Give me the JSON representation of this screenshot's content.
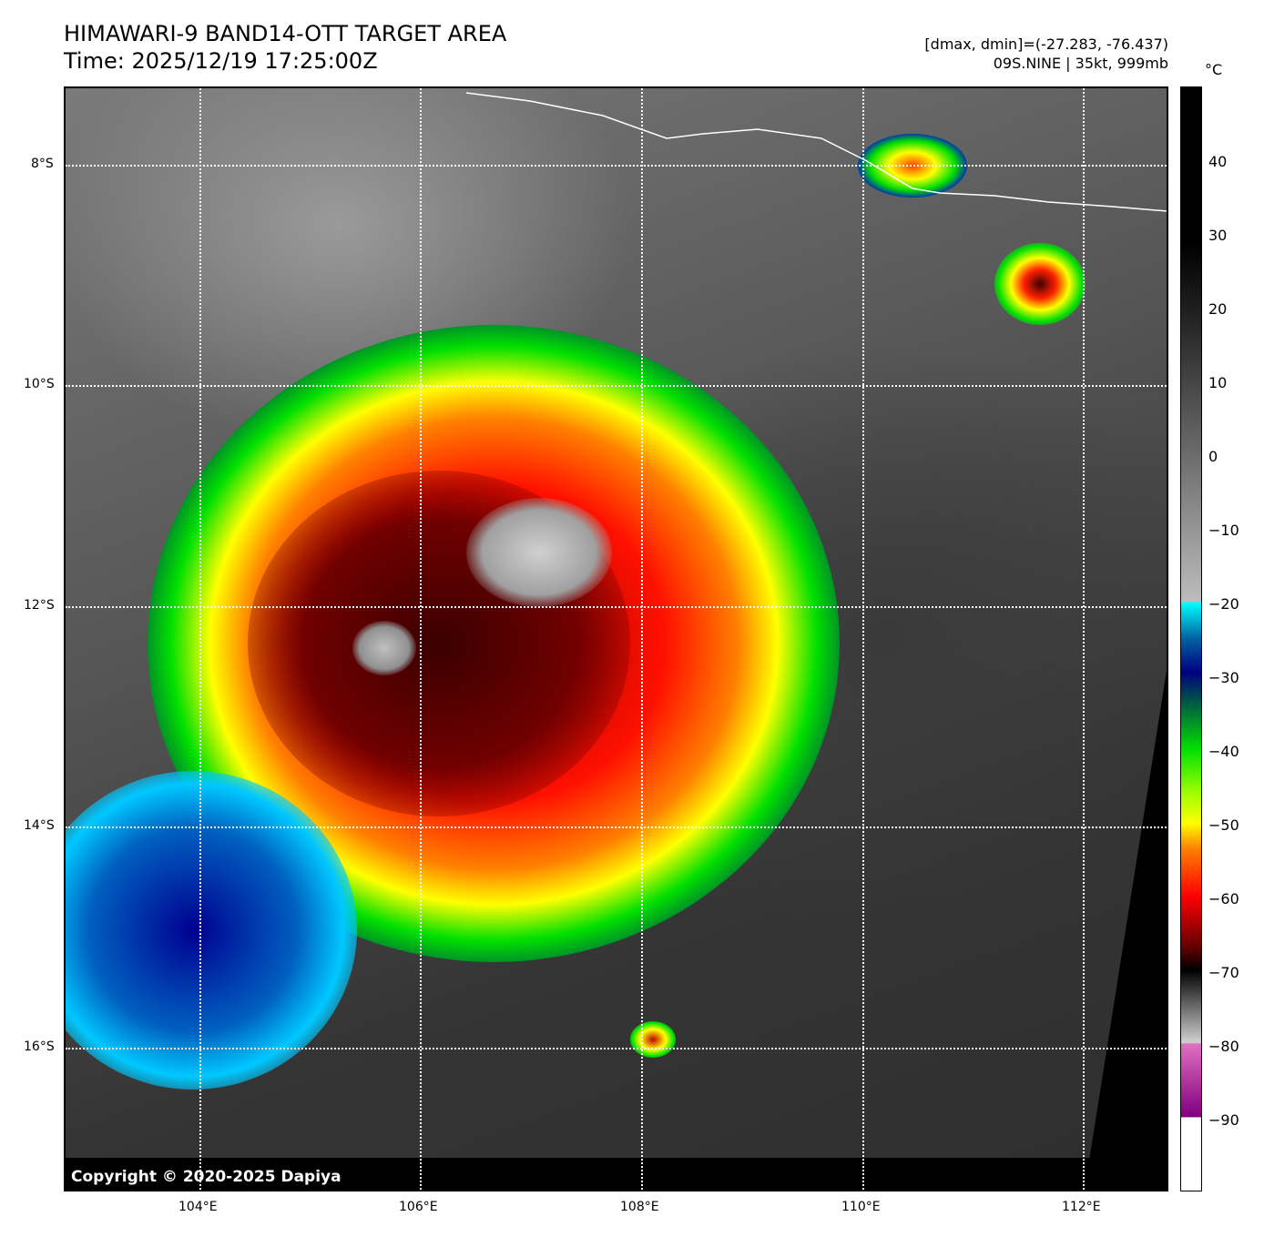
{
  "header": {
    "title": "HIMAWARI-9 BAND14-OTT TARGET AREA",
    "time": "Time: 2025/12/19 17:25:00Z",
    "dminmax": "[dmax, dmin]=(-27.283, -76.437)",
    "storm": "09S.NINE | 35kt, 999mb"
  },
  "map": {
    "copyright": "Copyright © 2020-2025 Dapiya",
    "lon_labels": [
      "104°E",
      "106°E",
      "108°E",
      "110°E",
      "112°E"
    ],
    "lat_labels": [
      "8°S",
      "10°S",
      "12°S",
      "14°S",
      "16°S"
    ]
  },
  "colorbar": {
    "unit": "°C",
    "ticks": [
      "40",
      "30",
      "20",
      "10",
      "0",
      "−10",
      "−20",
      "−30",
      "−40",
      "−50",
      "−60",
      "−70",
      "−80",
      "−90"
    ],
    "range": [
      -100,
      50
    ],
    "colors": {
      "cyan": "#00ffff",
      "navy": "#000080",
      "green": "#00e000",
      "yellow": "#ffff00",
      "red": "#ff0000",
      "magenta": "#800080"
    }
  }
}
